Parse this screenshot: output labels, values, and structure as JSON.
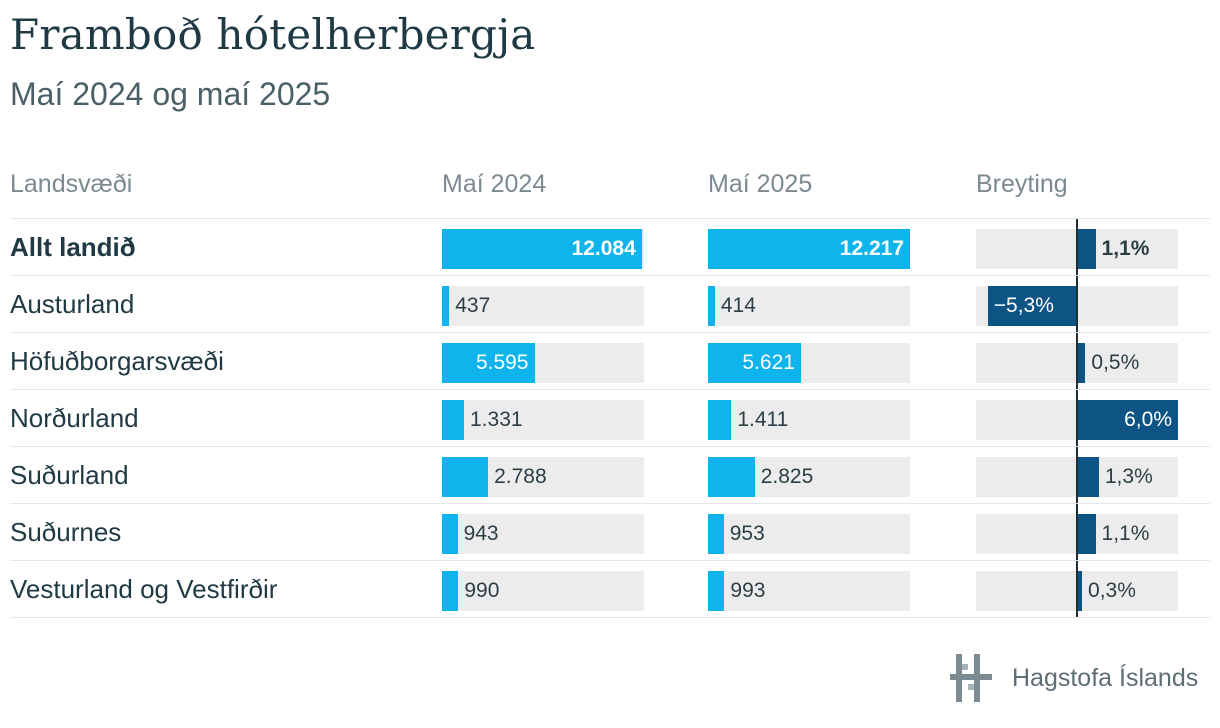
{
  "header": {
    "title": "Framboð hótelherbergja",
    "subtitle": "Maí 2024 og maí 2025"
  },
  "columns": {
    "region": "Landsvæði",
    "may2024": "Maí 2024",
    "may2025": "Maí 2025",
    "change": "Breyting"
  },
  "logo": {
    "text": "Hagstofa Íslands",
    "icon": "hagstofa-logo-icon"
  },
  "colors": {
    "bar": "#0fb4ec",
    "change": "#0d5484",
    "track": "#ececec"
  },
  "chart_data": {
    "type": "table",
    "title": "Framboð hótelherbergja",
    "subtitle": "Maí 2024 og maí 2025",
    "columns": [
      "Landsvæði",
      "Maí 2024",
      "Maí 2025",
      "Breyting"
    ],
    "change_range": [
      -6.0,
      6.0
    ],
    "rows": [
      {
        "region": "Allt landið",
        "v2024": 12084,
        "v2025": 12217,
        "change": 1.1,
        "v2024_label": "12.084",
        "v2025_label": "12.217",
        "change_label": "1,1%",
        "bold": true
      },
      {
        "region": "Austurland",
        "v2024": 437,
        "v2025": 414,
        "change": -5.3,
        "v2024_label": "437",
        "v2025_label": "414",
        "change_label": "−5,3%",
        "bold": false
      },
      {
        "region": "Höfuðborgarsvæði",
        "v2024": 5595,
        "v2025": 5621,
        "change": 0.5,
        "v2024_label": "5.595",
        "v2025_label": "5.621",
        "change_label": "0,5%",
        "bold": false
      },
      {
        "region": "Norðurland",
        "v2024": 1331,
        "v2025": 1411,
        "change": 6.0,
        "v2024_label": "1.331",
        "v2025_label": "1.411",
        "change_label": "6,0%",
        "bold": false
      },
      {
        "region": "Suðurland",
        "v2024": 2788,
        "v2025": 2825,
        "change": 1.3,
        "v2024_label": "2.788",
        "v2025_label": "2.825",
        "change_label": "1,3%",
        "bold": false
      },
      {
        "region": "Suðurnes",
        "v2024": 943,
        "v2025": 953,
        "change": 1.1,
        "v2024_label": "943",
        "v2025_label": "953",
        "change_label": "1,1%",
        "bold": false
      },
      {
        "region": "Vesturland og Vestfirðir",
        "v2024": 990,
        "v2025": 993,
        "change": 0.3,
        "v2024_label": "990",
        "v2025_label": "993",
        "change_label": "0,3%",
        "bold": false
      }
    ]
  }
}
